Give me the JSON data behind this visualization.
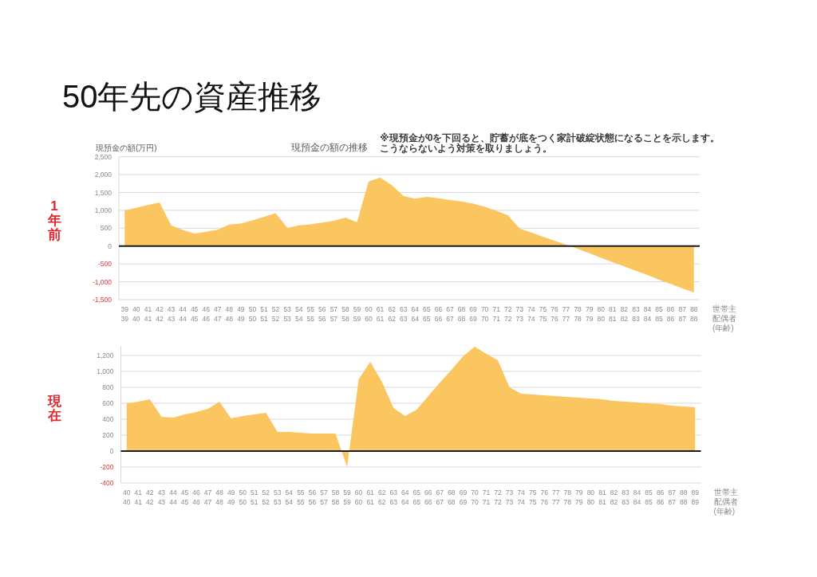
{
  "chart_data": [
    {
      "type": "area",
      "title": "50年先の資産推移",
      "subtitle": "現預金の額の推移",
      "ylabel": "現預金の額(万円)",
      "xlabel": "世帯主配偶者(年齢)",
      "annotations": [
        "1年前",
        "※現預金が0を下回ると、貯蓄が底をつく家計破綻状態になることを示します。こうならないよう対策を取りましょう。"
      ],
      "categories": [
        "39\n39",
        "40\n40",
        "41\n41",
        "42\n42",
        "43\n43",
        "44\n44",
        "45\n45",
        "46\n46",
        "47\n47",
        "48\n48",
        "49\n49",
        "50\n50",
        "51\n51",
        "52\n52",
        "53\n53",
        "54\n54",
        "55\n55",
        "56\n56",
        "57\n57",
        "58\n58",
        "59\n59",
        "60\n60",
        "61\n61",
        "62\n62",
        "63\n63",
        "64\n64",
        "65\n65",
        "66\n66",
        "67\n67",
        "68\n68",
        "69\n69",
        "70\n70",
        "71\n71",
        "72\n72",
        "73\n73",
        "74\n74",
        "75\n75",
        "76\n76",
        "77\n77",
        "78\n78",
        "79\n79",
        "80\n80",
        "81\n81",
        "82\n82",
        "83\n83",
        "84\n84",
        "85\n85",
        "86\n86",
        "87\n87",
        "88\n88"
      ],
      "values": [
        1000,
        1070,
        1150,
        1220,
        580,
        450,
        350,
        400,
        460,
        600,
        630,
        720,
        820,
        920,
        510,
        580,
        610,
        660,
        710,
        800,
        670,
        1810,
        1920,
        1700,
        1400,
        1330,
        1380,
        1340,
        1290,
        1250,
        1190,
        1100,
        990,
        860,
        490,
        380,
        260,
        150,
        40,
        -80,
        -200,
        -330,
        -450,
        -570,
        -690,
        -810,
        -940,
        -1060,
        -1180,
        -1300
      ],
      "color": "#fbc55f",
      "ylim": [
        -1500,
        2500
      ],
      "yticks": [
        {
          "value": -1500,
          "label": "-1,500"
        },
        {
          "value": -1000,
          "label": "-1,000"
        },
        -500,
        0,
        500,
        {
          "value": 1000,
          "label": "1,000"
        },
        {
          "value": 1500,
          "label": "1,500"
        },
        {
          "value": 2000,
          "label": "2,000"
        },
        {
          "value": 2500,
          "label": "2,500"
        }
      ],
      "grid": "y"
    },
    {
      "type": "area",
      "xlabel": "世帯主配偶者(年齢)",
      "annotations": [
        "現在"
      ],
      "categories": [
        "40\n40",
        "41\n41",
        "42\n42",
        "43\n43",
        "44\n44",
        "45\n45",
        "46\n46",
        "47\n47",
        "48\n48",
        "49\n49",
        "50\n50",
        "51\n51",
        "52\n52",
        "53\n53",
        "54\n54",
        "55\n55",
        "56\n56",
        "57\n57",
        "58\n58",
        "59\n59",
        "60\n60",
        "61\n61",
        "62\n62",
        "63\n63",
        "64\n64",
        "65\n65",
        "66\n66",
        "67\n67",
        "68\n68",
        "69\n69",
        "70\n70",
        "71\n71",
        "72\n72",
        "73\n73",
        "74\n74",
        "75\n75",
        "76\n76",
        "77\n77",
        "78\n78",
        "79\n79",
        "80\n80",
        "81\n81",
        "82\n82",
        "83\n83",
        "84\n84",
        "85\n85",
        "86\n86",
        "87\n87",
        "88\n88",
        "89\n89"
      ],
      "values": [
        600,
        620,
        650,
        430,
        420,
        460,
        490,
        530,
        620,
        410,
        440,
        460,
        480,
        240,
        240,
        230,
        220,
        220,
        220,
        -200,
        900,
        1120,
        870,
        540,
        440,
        520,
        690,
        860,
        1020,
        1190,
        1310,
        1220,
        1140,
        800,
        720,
        710,
        700,
        690,
        680,
        670,
        660,
        650,
        630,
        620,
        610,
        600,
        590,
        570,
        560,
        550
      ],
      "color": "#fbc55f",
      "ylim": [
        -400,
        1320
      ],
      "yticks": [
        -400,
        -200,
        0,
        200,
        400,
        600,
        800,
        {
          "value": 1000,
          "label": "1,000"
        },
        {
          "value": 1200,
          "label": "1,200"
        }
      ],
      "grid": "y"
    }
  ]
}
